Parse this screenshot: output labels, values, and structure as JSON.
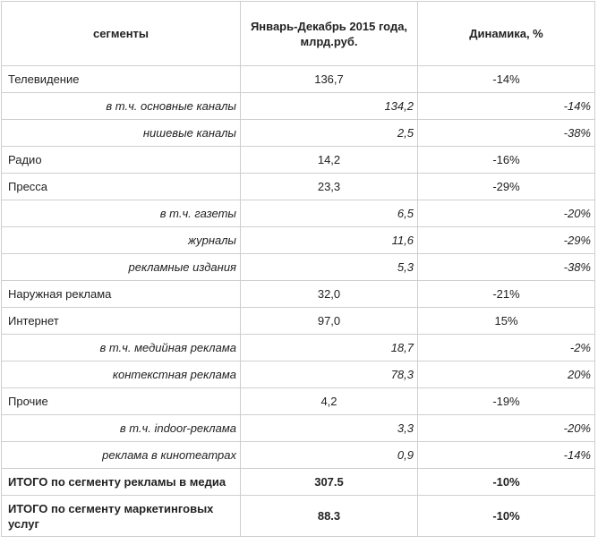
{
  "header": {
    "segments": "сегменты",
    "period": "Январь-Декабрь 2015 года, млрд.руб.",
    "dynamics": "Динамика, %"
  },
  "rows": [
    {
      "type": "main",
      "label": "Телевидение",
      "value": "136,7",
      "dynamics": "-14%"
    },
    {
      "type": "sub",
      "label": "в т.ч. основные каналы",
      "value": "134,2",
      "dynamics": "-14%"
    },
    {
      "type": "sub",
      "label": "нишевые каналы",
      "value": "2,5",
      "dynamics": "-38%"
    },
    {
      "type": "main",
      "label": "Радио",
      "value": "14,2",
      "dynamics": "-16%"
    },
    {
      "type": "main",
      "label": "Пресса",
      "value": "23,3",
      "dynamics": "-29%"
    },
    {
      "type": "sub",
      "label": "в т.ч. газеты",
      "value": "6,5",
      "dynamics": "-20%"
    },
    {
      "type": "sub",
      "label": "журналы",
      "value": "11,6",
      "dynamics": "-29%"
    },
    {
      "type": "sub",
      "label": "рекламные издания",
      "value": "5,3",
      "dynamics": "-38%"
    },
    {
      "type": "main",
      "label": "Наружная реклама",
      "value": "32,0",
      "dynamics": "-21%"
    },
    {
      "type": "main",
      "label": "Интернет",
      "value": "97,0",
      "dynamics": "15%"
    },
    {
      "type": "sub",
      "label": "в т.ч. медийная реклама",
      "value": "18,7",
      "dynamics": "-2%"
    },
    {
      "type": "sub",
      "label": "контекстная реклама",
      "value": "78,3",
      "dynamics": "20%"
    },
    {
      "type": "main",
      "label": "Прочие",
      "value": "4,2",
      "dynamics": "-19%"
    },
    {
      "type": "sub",
      "label": "в т.ч. indoor-реклама",
      "value": "3,3",
      "dynamics": "-20%"
    },
    {
      "type": "sub",
      "label": "реклама в кинотеатрах",
      "value": "0,9",
      "dynamics": "-14%"
    },
    {
      "type": "total",
      "label": "ИТОГО по сегменту рекламы в медиа",
      "value": "307.5",
      "dynamics": "-10%"
    },
    {
      "type": "total2",
      "label": "ИТОГО по сегменту маркетинговых услуг",
      "value": "88.3",
      "dynamics": "-10%"
    }
  ]
}
